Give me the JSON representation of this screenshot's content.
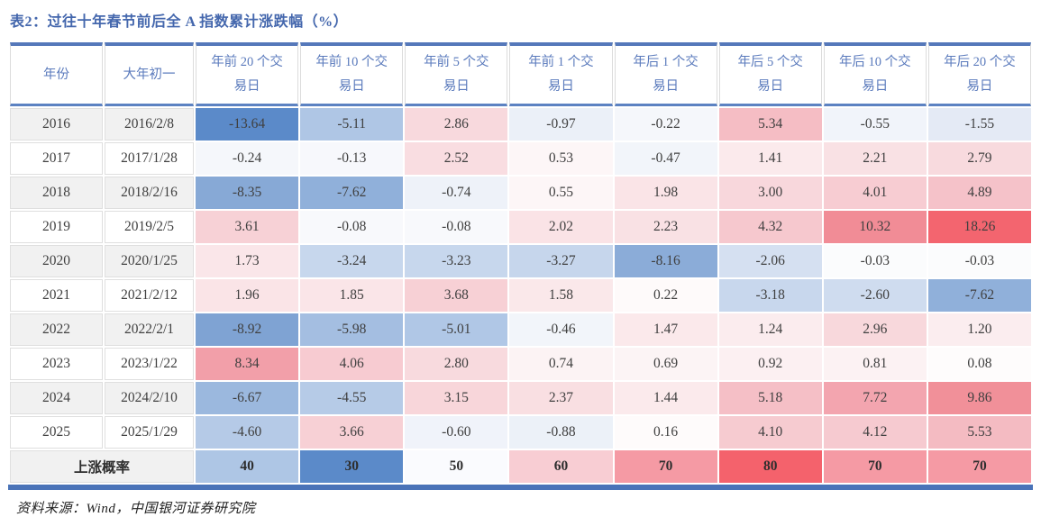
{
  "title": "表2：过往十年春节前后全 A 指数累计涨跌幅（%）",
  "footer": {
    "source": "资料来源：Wind，中国银河证券研究院"
  },
  "palette": {
    "title_text": "#4467AD",
    "header_text": "#5A7ABC",
    "table_top_border": "#5578BA",
    "header_underline": "#5C82C2",
    "bottom_bar": "#4A73B8",
    "row_stripe": "#F1F1F1",
    "max_negative_blue": "#5B8AC9",
    "max_positive_red": "#F3656F"
  },
  "chart_data": {
    "type": "table",
    "columns": [
      "年份",
      "大年初一",
      "年前 20 个交易日",
      "年前 10 个交易日",
      "年前 5 个交易日",
      "年前 1 个交易日",
      "年后 1 个交易日",
      "年后 5 个交易日",
      "年后 10 个交易日",
      "年后 20 个交易日"
    ],
    "rows": [
      {
        "year": "2016",
        "date": "2016/2/8",
        "values": [
          "-13.64",
          "-5.11",
          "2.86",
          "-0.97",
          "-0.22",
          "5.34",
          "-0.55",
          "-1.55"
        ],
        "colors": [
          "#5B8AC9",
          "#AFC6E5",
          "#F8D9DD",
          "#EBF0F8",
          "#F5F7FB",
          "#F5BDC4",
          "#F1F4FA",
          "#E4EAF5"
        ]
      },
      {
        "year": "2017",
        "date": "2017/1/28",
        "values": [
          "-0.24",
          "-0.13",
          "2.52",
          "0.53",
          "-0.47",
          "1.41",
          "2.21",
          "2.79"
        ],
        "colors": [
          "#F5F7FB",
          "#F7F8FC",
          "#F9DDE1",
          "#FDF6F7",
          "#F2F5FA",
          "#FBEAEC",
          "#F9E1E4",
          "#F8DADE"
        ]
      },
      {
        "year": "2018",
        "date": "2018/2/16",
        "values": [
          "-8.35",
          "-7.62",
          "-0.74",
          "0.55",
          "1.98",
          "3.00",
          "4.01",
          "4.89"
        ],
        "colors": [
          "#87A9D6",
          "#90B0DA",
          "#EEF2F9",
          "#FDF6F7",
          "#FAE4E7",
          "#F8D7DC",
          "#F7CCD2",
          "#F5C2C9"
        ]
      },
      {
        "year": "2019",
        "date": "2019/2/5",
        "values": [
          "3.61",
          "-0.08",
          "-0.08",
          "2.02",
          "2.23",
          "4.32",
          "10.32",
          "18.26"
        ],
        "colors": [
          "#F7D1D6",
          "#F8F9FC",
          "#F8F9FC",
          "#FAE3E6",
          "#F9E1E4",
          "#F6C8CE",
          "#F18C96",
          "#F3656F"
        ]
      },
      {
        "year": "2020",
        "date": "2020/1/25",
        "values": [
          "1.73",
          "-3.24",
          "-3.23",
          "-3.27",
          "-8.16",
          "-2.06",
          "-0.03",
          "-0.03"
        ],
        "colors": [
          "#FAE6E9",
          "#C7D7ED",
          "#C7D7ED",
          "#C6D6EC",
          "#8BACD8",
          "#D5E0F1",
          "#FBFCFD",
          "#FBFCFD"
        ]
      },
      {
        "year": "2021",
        "date": "2021/2/12",
        "values": [
          "1.96",
          "1.85",
          "3.68",
          "1.58",
          "0.22",
          "-3.18",
          "-2.60",
          "-7.62"
        ],
        "colors": [
          "#FAE4E7",
          "#FAE5E8",
          "#F7D0D5",
          "#FAE8EA",
          "#FEFAFA",
          "#C8D7ED",
          "#CFDCEF",
          "#90B0DA"
        ]
      },
      {
        "year": "2022",
        "date": "2022/2/1",
        "values": [
          "-8.92",
          "-5.98",
          "-5.01",
          "-0.46",
          "1.47",
          "1.24",
          "2.96",
          "1.20"
        ],
        "colors": [
          "#7FA3D3",
          "#A4BEE1",
          "#B0C7E6",
          "#F2F5FA",
          "#FBE9EB",
          "#FBECEE",
          "#F8D8DC",
          "#FBEDEF"
        ]
      },
      {
        "year": "2023",
        "date": "2023/1/22",
        "values": [
          "8.34",
          "4.06",
          "2.80",
          "0.74",
          "0.69",
          "0.92",
          "0.81",
          "0.08"
        ],
        "colors": [
          "#F29FA9",
          "#F7CBD1",
          "#F8DADE",
          "#FCF3F4",
          "#FCF4F5",
          "#FCF0F2",
          "#FCF2F3",
          "#FEFCFC"
        ]
      },
      {
        "year": "2024",
        "date": "2024/2/10",
        "values": [
          "-6.67",
          "-4.55",
          "3.15",
          "2.37",
          "1.44",
          "5.18",
          "7.72",
          "9.86"
        ],
        "colors": [
          "#9BB8DE",
          "#B6CBE7",
          "#F8D6DA",
          "#F9DFE2",
          "#FBEAEC",
          "#F5BFC6",
          "#F3A5AF",
          "#F19099"
        ]
      },
      {
        "year": "2025",
        "date": "2025/1/29",
        "values": [
          "-4.60",
          "3.66",
          "-0.60",
          "-0.88",
          "0.16",
          "4.10",
          "4.12",
          "5.53"
        ],
        "colors": [
          "#B5CAE7",
          "#F7D0D5",
          "#F0F3FA",
          "#ECF1F8",
          "#FEFBFB",
          "#F6CBD0",
          "#F6CAD0",
          "#F4BBC2"
        ]
      }
    ],
    "summary_row": {
      "label": "上涨概率",
      "values": [
        "40",
        "30",
        "50",
        "60",
        "70",
        "80",
        "70",
        "70"
      ],
      "colors": [
        "#AEC6E5",
        "#5B8AC9",
        "#FAFBFE",
        "#F8CDD3",
        "#F59AA4",
        "#F4626C",
        "#F59AA4",
        "#F59AA4"
      ]
    }
  }
}
